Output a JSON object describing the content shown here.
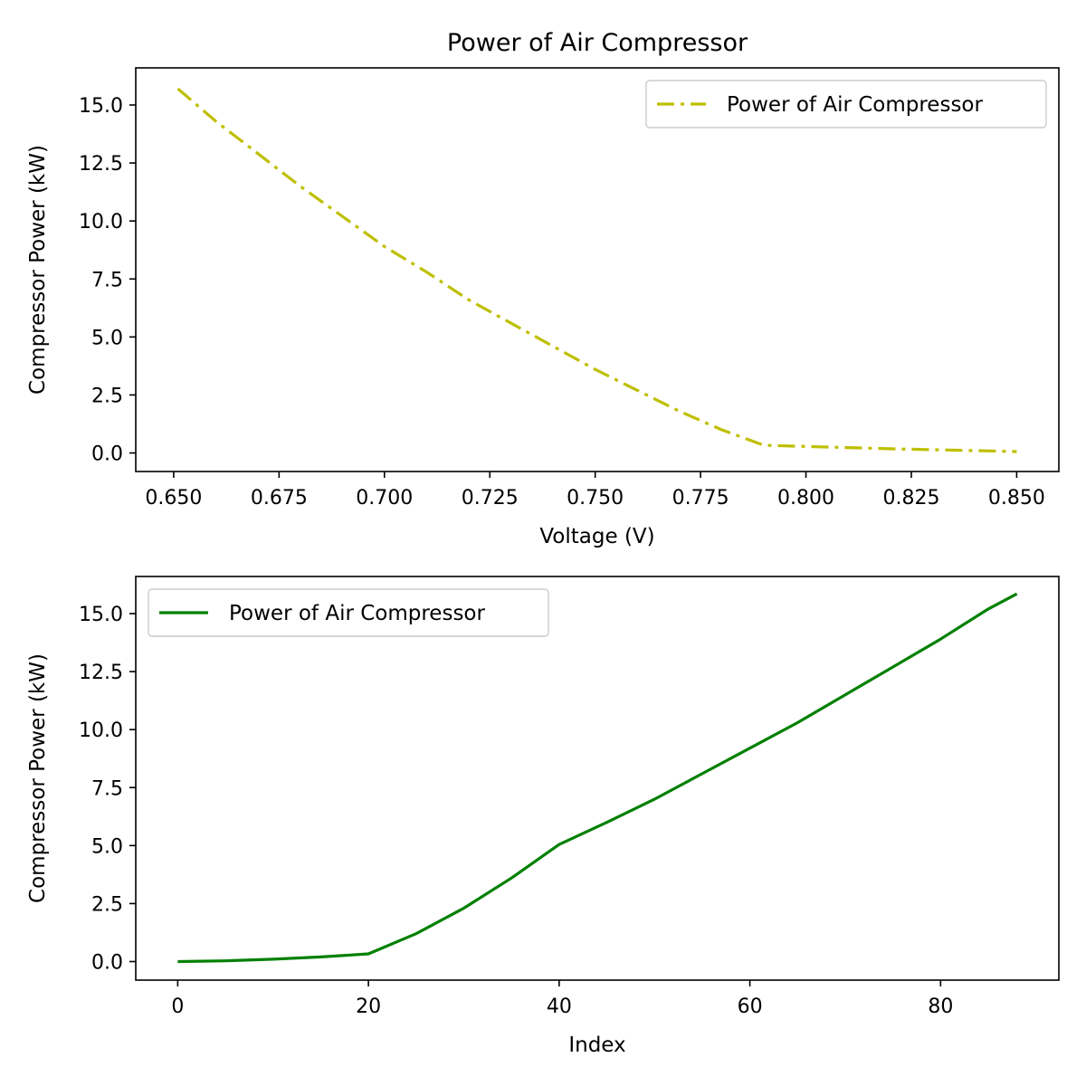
{
  "chart_data": [
    {
      "type": "line",
      "title": "Power of Air Compressor",
      "xlabel": "Voltage (V)",
      "ylabel": "Compressor Power (kW)",
      "xlim": [
        0.641,
        0.86
      ],
      "ylim": [
        -0.8,
        16.6
      ],
      "xticks": [
        0.65,
        0.675,
        0.7,
        0.725,
        0.75,
        0.775,
        0.8,
        0.825,
        0.85
      ],
      "xtick_labels": [
        "0.650",
        "0.675",
        "0.700",
        "0.725",
        "0.750",
        "0.775",
        "0.800",
        "0.825",
        "0.850"
      ],
      "yticks": [
        0,
        2.5,
        5,
        7.5,
        10,
        12.5,
        15
      ],
      "ytick_labels": [
        "0.0",
        "2.5",
        "5.0",
        "7.5",
        "10.0",
        "12.5",
        "15.0"
      ],
      "grid": false,
      "legend_position": "top-right",
      "series": [
        {
          "name": "Power of Air Compressor",
          "color": "#bfbf00",
          "style": "dashdot",
          "x": [
            0.651,
            0.66,
            0.67,
            0.68,
            0.69,
            0.7,
            0.71,
            0.72,
            0.73,
            0.74,
            0.75,
            0.76,
            0.77,
            0.78,
            0.79,
            0.8,
            0.81,
            0.82,
            0.83,
            0.84,
            0.85
          ],
          "y": [
            15.7,
            14.3,
            12.9,
            11.5,
            10.2,
            8.9,
            7.8,
            6.6,
            5.6,
            4.6,
            3.6,
            2.7,
            1.8,
            1.0,
            0.33,
            0.28,
            0.23,
            0.18,
            0.14,
            0.1,
            0.06
          ]
        }
      ]
    },
    {
      "type": "line",
      "title": "",
      "xlabel": "Index",
      "ylabel": "Compressor Power (kW)",
      "xlim": [
        -4.4,
        92.4
      ],
      "ylim": [
        -0.8,
        16.6
      ],
      "xticks": [
        0,
        20,
        40,
        60,
        80
      ],
      "xtick_labels": [
        "0",
        "20",
        "40",
        "60",
        "80"
      ],
      "yticks": [
        0,
        2.5,
        5,
        7.5,
        10,
        12.5,
        15
      ],
      "ytick_labels": [
        "0.0",
        "2.5",
        "5.0",
        "7.5",
        "10.0",
        "12.5",
        "15.0"
      ],
      "grid": false,
      "legend_position": "top-left",
      "series": [
        {
          "name": "Power of Air Compressor",
          "color": "#008000",
          "style": "solid",
          "x": [
            0,
            5,
            10,
            15,
            20,
            25,
            30,
            35,
            40,
            45,
            50,
            55,
            60,
            65,
            70,
            75,
            80,
            85,
            88
          ],
          "y": [
            0,
            0.03,
            0.1,
            0.2,
            0.33,
            1.2,
            2.3,
            3.6,
            5.05,
            6.0,
            7.0,
            8.1,
            9.2,
            10.3,
            11.5,
            12.7,
            13.9,
            15.2,
            15.85
          ]
        }
      ]
    }
  ]
}
